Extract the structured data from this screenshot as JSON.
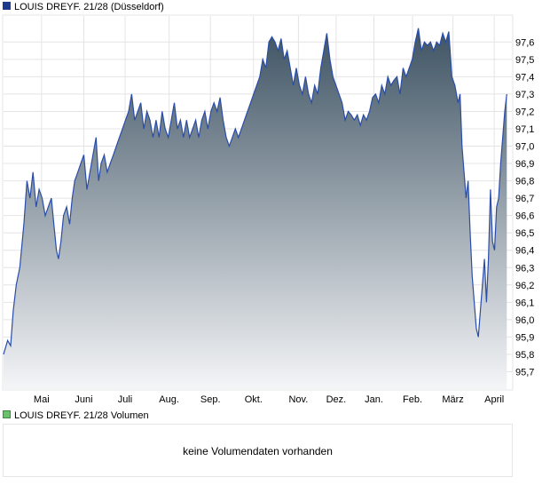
{
  "chart_data": {
    "type": "area",
    "title": "LOUIS DREYF. 21/28 (Düsseldorf)",
    "series_color": "#2a4da8",
    "fill_top_color": "#3e5363",
    "fill_bottom_color": "#f4f5f7",
    "ylim": [
      95.6,
      97.75
    ],
    "yticks": [
      95.7,
      95.8,
      95.9,
      96.0,
      96.1,
      96.2,
      96.3,
      96.4,
      96.5,
      96.6,
      96.7,
      96.8,
      96.9,
      97.0,
      97.1,
      97.2,
      97.3,
      97.4,
      97.5,
      97.6
    ],
    "ytick_labels": [
      "95,7",
      "95,8",
      "95,9",
      "96,0",
      "96,1",
      "96,2",
      "96,3",
      "96,4",
      "96,5",
      "96,6",
      "96,7",
      "96,8",
      "96,9",
      "97,0",
      "97,1",
      "97,2",
      "97,3",
      "97,4",
      "97,5",
      "97,6"
    ],
    "xlim": [
      0,
      1
    ],
    "xticks": [
      {
        "label": "Mai",
        "x": 0.0747
      },
      {
        "label": "Juni",
        "x": 0.1579
      },
      {
        "label": "Juli",
        "x": 0.2391
      },
      {
        "label": "Aug.",
        "x": 0.3257
      },
      {
        "label": "Sep.",
        "x": 0.407
      },
      {
        "label": "Okt.",
        "x": 0.4918
      },
      {
        "label": "Nov.",
        "x": 0.5801
      },
      {
        "label": "Dez.",
        "x": 0.6543
      },
      {
        "label": "Jan.",
        "x": 0.7286
      },
      {
        "label": "Feb.",
        "x": 0.8046
      },
      {
        "label": "März",
        "x": 0.8841
      },
      {
        "label": "April",
        "x": 0.9654
      }
    ],
    "grid": true,
    "points": [
      [
        0.0,
        95.8
      ],
      [
        0.008,
        95.88
      ],
      [
        0.014,
        95.85
      ],
      [
        0.019,
        96.05
      ],
      [
        0.025,
        96.2
      ],
      [
        0.032,
        96.3
      ],
      [
        0.04,
        96.55
      ],
      [
        0.046,
        96.8
      ],
      [
        0.052,
        96.7
      ],
      [
        0.058,
        96.85
      ],
      [
        0.064,
        96.65
      ],
      [
        0.07,
        96.75
      ],
      [
        0.076,
        96.7
      ],
      [
        0.082,
        96.6
      ],
      [
        0.088,
        96.65
      ],
      [
        0.094,
        96.7
      ],
      [
        0.099,
        96.55
      ],
      [
        0.104,
        96.4
      ],
      [
        0.108,
        96.35
      ],
      [
        0.113,
        96.45
      ],
      [
        0.118,
        96.6
      ],
      [
        0.124,
        96.65
      ],
      [
        0.13,
        96.55
      ],
      [
        0.135,
        96.7
      ],
      [
        0.14,
        96.8
      ],
      [
        0.146,
        96.85
      ],
      [
        0.152,
        96.9
      ],
      [
        0.158,
        96.95
      ],
      [
        0.164,
        96.75
      ],
      [
        0.17,
        96.85
      ],
      [
        0.176,
        96.95
      ],
      [
        0.182,
        97.05
      ],
      [
        0.187,
        96.8
      ],
      [
        0.192,
        96.9
      ],
      [
        0.198,
        96.95
      ],
      [
        0.204,
        96.85
      ],
      [
        0.21,
        96.9
      ],
      [
        0.216,
        96.95
      ],
      [
        0.222,
        97.0
      ],
      [
        0.228,
        97.05
      ],
      [
        0.234,
        97.1
      ],
      [
        0.24,
        97.15
      ],
      [
        0.246,
        97.2
      ],
      [
        0.252,
        97.3
      ],
      [
        0.258,
        97.15
      ],
      [
        0.264,
        97.2
      ],
      [
        0.27,
        97.25
      ],
      [
        0.276,
        97.1
      ],
      [
        0.282,
        97.2
      ],
      [
        0.288,
        97.15
      ],
      [
        0.294,
        97.05
      ],
      [
        0.3,
        97.15
      ],
      [
        0.306,
        97.05
      ],
      [
        0.312,
        97.2
      ],
      [
        0.318,
        97.1
      ],
      [
        0.324,
        97.05
      ],
      [
        0.33,
        97.15
      ],
      [
        0.336,
        97.25
      ],
      [
        0.342,
        97.1
      ],
      [
        0.348,
        97.15
      ],
      [
        0.354,
        97.05
      ],
      [
        0.36,
        97.15
      ],
      [
        0.366,
        97.05
      ],
      [
        0.372,
        97.1
      ],
      [
        0.378,
        97.15
      ],
      [
        0.384,
        97.05
      ],
      [
        0.39,
        97.15
      ],
      [
        0.396,
        97.2
      ],
      [
        0.402,
        97.1
      ],
      [
        0.408,
        97.2
      ],
      [
        0.414,
        97.25
      ],
      [
        0.42,
        97.2
      ],
      [
        0.426,
        97.28
      ],
      [
        0.432,
        97.15
      ],
      [
        0.438,
        97.05
      ],
      [
        0.444,
        97.0
      ],
      [
        0.45,
        97.05
      ],
      [
        0.456,
        97.1
      ],
      [
        0.462,
        97.05
      ],
      [
        0.468,
        97.1
      ],
      [
        0.474,
        97.15
      ],
      [
        0.48,
        97.2
      ],
      [
        0.486,
        97.25
      ],
      [
        0.492,
        97.3
      ],
      [
        0.498,
        97.35
      ],
      [
        0.504,
        97.4
      ],
      [
        0.51,
        97.5
      ],
      [
        0.516,
        97.45
      ],
      [
        0.522,
        97.6
      ],
      [
        0.528,
        97.63
      ],
      [
        0.534,
        97.6
      ],
      [
        0.54,
        97.55
      ],
      [
        0.546,
        97.62
      ],
      [
        0.552,
        97.5
      ],
      [
        0.558,
        97.55
      ],
      [
        0.564,
        97.45
      ],
      [
        0.57,
        97.35
      ],
      [
        0.576,
        97.45
      ],
      [
        0.582,
        97.35
      ],
      [
        0.588,
        97.3
      ],
      [
        0.594,
        97.4
      ],
      [
        0.6,
        97.3
      ],
      [
        0.606,
        97.25
      ],
      [
        0.612,
        97.35
      ],
      [
        0.618,
        97.3
      ],
      [
        0.624,
        97.45
      ],
      [
        0.63,
        97.55
      ],
      [
        0.636,
        97.65
      ],
      [
        0.642,
        97.5
      ],
      [
        0.648,
        97.4
      ],
      [
        0.654,
        97.35
      ],
      [
        0.66,
        97.3
      ],
      [
        0.666,
        97.25
      ],
      [
        0.672,
        97.15
      ],
      [
        0.678,
        97.2
      ],
      [
        0.684,
        97.18
      ],
      [
        0.69,
        97.15
      ],
      [
        0.696,
        97.18
      ],
      [
        0.702,
        97.12
      ],
      [
        0.708,
        97.18
      ],
      [
        0.714,
        97.15
      ],
      [
        0.72,
        97.2
      ],
      [
        0.726,
        97.28
      ],
      [
        0.732,
        97.3
      ],
      [
        0.738,
        97.25
      ],
      [
        0.744,
        97.35
      ],
      [
        0.75,
        97.3
      ],
      [
        0.756,
        97.4
      ],
      [
        0.762,
        97.35
      ],
      [
        0.768,
        97.38
      ],
      [
        0.774,
        97.4
      ],
      [
        0.78,
        97.3
      ],
      [
        0.786,
        97.45
      ],
      [
        0.792,
        97.4
      ],
      [
        0.798,
        97.45
      ],
      [
        0.804,
        97.5
      ],
      [
        0.81,
        97.6
      ],
      [
        0.816,
        97.68
      ],
      [
        0.822,
        97.55
      ],
      [
        0.828,
        97.6
      ],
      [
        0.834,
        97.58
      ],
      [
        0.84,
        97.6
      ],
      [
        0.846,
        97.55
      ],
      [
        0.852,
        97.6
      ],
      [
        0.858,
        97.58
      ],
      [
        0.864,
        97.65
      ],
      [
        0.87,
        97.6
      ],
      [
        0.876,
        97.66
      ],
      [
        0.882,
        97.4
      ],
      [
        0.888,
        97.35
      ],
      [
        0.894,
        97.25
      ],
      [
        0.898,
        97.3
      ],
      [
        0.902,
        97.0
      ],
      [
        0.906,
        96.85
      ],
      [
        0.91,
        96.7
      ],
      [
        0.914,
        96.8
      ],
      [
        0.918,
        96.5
      ],
      [
        0.922,
        96.25
      ],
      [
        0.926,
        96.1
      ],
      [
        0.93,
        95.95
      ],
      [
        0.934,
        95.9
      ],
      [
        0.938,
        96.05
      ],
      [
        0.942,
        96.2
      ],
      [
        0.946,
        96.35
      ],
      [
        0.95,
        96.1
      ],
      [
        0.954,
        96.35
      ],
      [
        0.958,
        96.75
      ],
      [
        0.962,
        96.45
      ],
      [
        0.966,
        96.4
      ],
      [
        0.97,
        96.65
      ],
      [
        0.974,
        96.7
      ],
      [
        0.978,
        96.9
      ],
      [
        0.982,
        97.05
      ],
      [
        0.986,
        97.2
      ],
      [
        0.99,
        97.3
      ]
    ]
  },
  "volume_panel": {
    "legend": "LOUIS DREYF. 21/28 Volumen",
    "legend_color": "#6cc26c",
    "message": "keine Volumendaten vorhanden"
  }
}
